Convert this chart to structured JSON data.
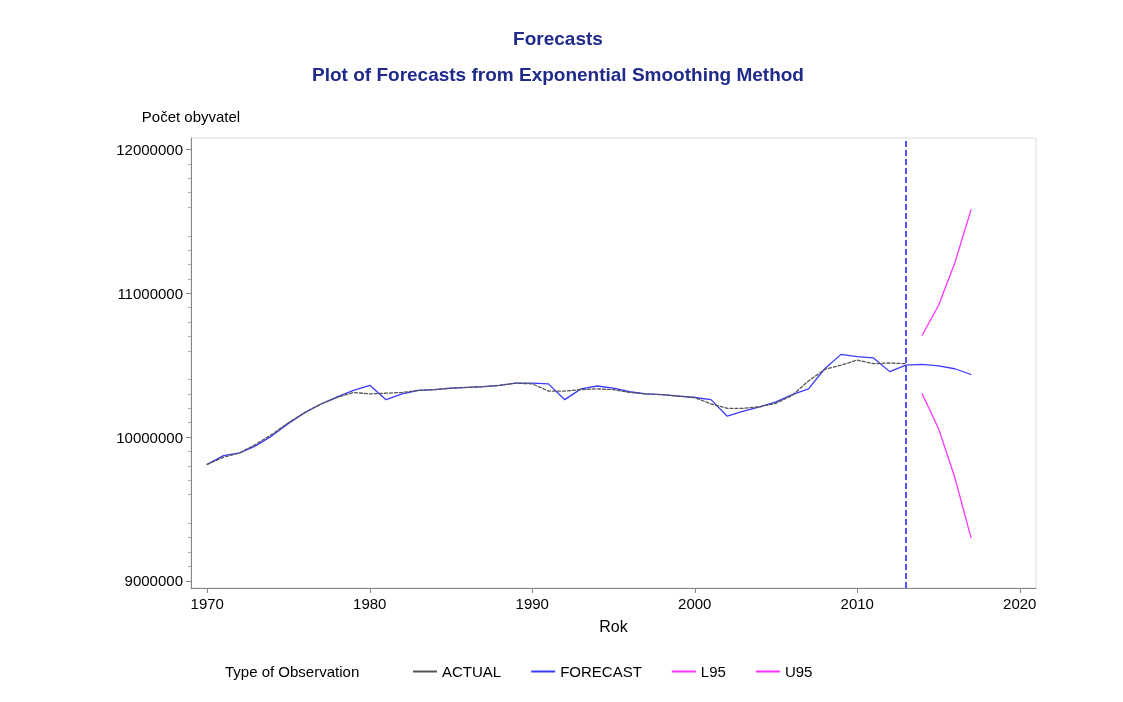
{
  "chart_data": {
    "type": "line",
    "title": "Forecasts",
    "subtitle": "Plot of Forecasts from Exponential Smoothing Method",
    "xlabel": "Rok",
    "ylabel": "Počet obyvatel",
    "legend_title": "Type of Observation",
    "legend": "bottom",
    "grid": false,
    "marker": "none",
    "xlim": [
      1969,
      2021
    ],
    "xticks": [
      1970,
      1980,
      1990,
      2000,
      2010,
      2020
    ],
    "ylim": [
      8950000,
      12080000
    ],
    "yticks": [
      9000000,
      10000000,
      11000000,
      12000000
    ],
    "ref_lines": [
      {
        "axis": "x",
        "value": 2013,
        "color": "#1a1aff",
        "line_style": "dashed"
      }
    ],
    "series": [
      {
        "name": "ACTUAL",
        "color": "#555555",
        "line_style": "dashed",
        "x": [
          1970,
          1971,
          1972,
          1973,
          1974,
          1975,
          1976,
          1977,
          1978,
          1979,
          1980,
          1981,
          1982,
          1983,
          1984,
          1985,
          1986,
          1987,
          1988,
          1989,
          1990,
          1991,
          1992,
          1993,
          1994,
          1995,
          1996,
          1997,
          1998,
          1999,
          2000,
          2001,
          2002,
          2003,
          2004,
          2005,
          2006,
          2007,
          2008,
          2009,
          2010,
          2011,
          2012,
          2013
        ],
        "values": [
          9810000,
          9860000,
          9890000,
          9950000,
          10020000,
          10100000,
          10170000,
          10230000,
          10275000,
          10310000,
          10300000,
          10305000,
          10310000,
          10325000,
          10330000,
          10340000,
          10345000,
          10350000,
          10360000,
          10375000,
          10370000,
          10320000,
          10320000,
          10330000,
          10335000,
          10330000,
          10310000,
          10300000,
          10295000,
          10285000,
          10275000,
          10230000,
          10200000,
          10200000,
          10210000,
          10235000,
          10290000,
          10390000,
          10470000,
          10500000,
          10535000,
          10510000,
          10515000,
          10510000
        ]
      },
      {
        "name": "FORECAST",
        "color": "#3b3bff",
        "line_style": "solid",
        "x": [
          1970,
          1971,
          1972,
          1973,
          1974,
          1975,
          1976,
          1977,
          1978,
          1979,
          1980,
          1981,
          1982,
          1983,
          1984,
          1985,
          1986,
          1987,
          1988,
          1989,
          1990,
          1991,
          1992,
          1993,
          1994,
          1995,
          1996,
          1997,
          1998,
          1999,
          2000,
          2001,
          2002,
          2003,
          2004,
          2005,
          2006,
          2007,
          2008,
          2009,
          2010,
          2011,
          2012,
          2013,
          2014,
          2015,
          2016,
          2017
        ],
        "values": [
          9810000,
          9871000,
          9890000,
          9940000,
          10010000,
          10095000,
          10170000,
          10230000,
          10280000,
          10325000,
          10360000,
          10260000,
          10300000,
          10325000,
          10330000,
          10340000,
          10345000,
          10350000,
          10360000,
          10375000,
          10375000,
          10370000,
          10260000,
          10335000,
          10355000,
          10340000,
          10315000,
          10300000,
          10295000,
          10285000,
          10275000,
          10260000,
          10145000,
          10180000,
          10210000,
          10245000,
          10295000,
          10335000,
          10475000,
          10575000,
          10560000,
          10550000,
          10455000,
          10500000,
          10505000,
          10495000,
          10475000,
          10435000
        ]
      },
      {
        "name": "L95",
        "color": "#ff33ff",
        "line_style": "solid",
        "x": [
          2014,
          2015,
          2016,
          2017
        ],
        "values": [
          10300000,
          10060000,
          9720000,
          9300000
        ]
      },
      {
        "name": "U95",
        "color": "#ff33ff",
        "line_style": "solid",
        "x": [
          2014,
          2015,
          2016,
          2017
        ],
        "values": [
          10710000,
          10915000,
          11210000,
          11580000
        ]
      }
    ]
  }
}
